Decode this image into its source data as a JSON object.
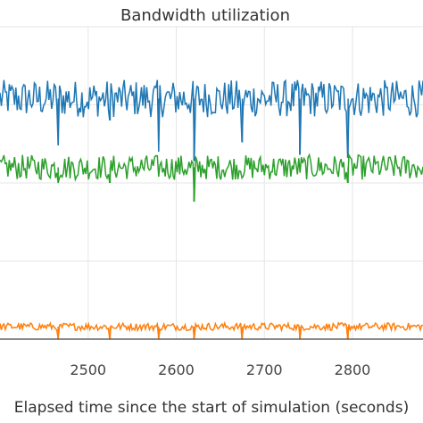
{
  "chart_data": {
    "type": "line",
    "title": "Bandwidth utilization",
    "xlabel": "Elapsed time since the start of simulation (seconds)",
    "ylabel": "",
    "x_ticks": [
      2500,
      2600,
      2700,
      2800
    ],
    "xlim": [
      2400,
      2880
    ],
    "ylim": [
      0,
      1
    ],
    "grid": true,
    "series": [
      {
        "color": "#1f77b4",
        "baseline": 0.77,
        "noise": 0.06,
        "dips": [
          {
            "x": 2466,
            "value": 0.62
          },
          {
            "x": 2525,
            "value": 0.7
          },
          {
            "x": 2580,
            "value": 0.6
          },
          {
            "x": 2620,
            "value": 0.57
          },
          {
            "x": 2675,
            "value": 0.63
          },
          {
            "x": 2740,
            "value": 0.59
          },
          {
            "x": 2795,
            "value": 0.58
          }
        ]
      },
      {
        "color": "#2ca02c",
        "baseline": 0.55,
        "noise": 0.04,
        "dips": [
          {
            "x": 2466,
            "value": 0.5
          },
          {
            "x": 2525,
            "value": 0.5
          },
          {
            "x": 2620,
            "value": 0.44
          },
          {
            "x": 2795,
            "value": 0.5
          }
        ]
      },
      {
        "color": "#ff7f0e",
        "baseline": 0.04,
        "noise": 0.012,
        "dips": [
          {
            "x": 2466,
            "value": 0.0
          },
          {
            "x": 2525,
            "value": 0.0
          },
          {
            "x": 2580,
            "value": 0.0
          },
          {
            "x": 2620,
            "value": 0.0
          },
          {
            "x": 2675,
            "value": 0.0
          },
          {
            "x": 2740,
            "value": 0.0
          },
          {
            "x": 2795,
            "value": 0.0
          }
        ]
      }
    ]
  }
}
